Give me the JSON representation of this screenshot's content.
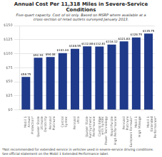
{
  "chart_data": {
    "type": "bar",
    "title": "Annual Cost Per 11,318 Miles in Severe-Service Conditions",
    "subtitle": [
      "Five-quart capacity. Cost of oil only. Based on MSRP where available at a",
      "cross-section of retail outlets surveyed January 2013."
    ],
    "annotations": [
      "*Not recommended for extended service in vehicles used in severe-service driving conditions. See official statement on the Mobil 1 Extended Performance label."
    ],
    "categories": [
      "Mobil 1\nAnnual\nProtection*",
      "Quaker State\nUltimate\nDurability",
      "Pennzoil\nPlatinum",
      "Castrol\nSyntec",
      "Pennzoil\nUltra",
      "Quaker State\nFull Synthetic\nPerformance",
      "Castrol Edge\nwith Syntec\nPower Technology",
      "Royal Purple\nHigh Performance",
      "Pennzoil\nPlatinum\nEuropean Formula*",
      "Mobil 1\nHigh Mileage",
      "Mobil 1\nExtended\nPerformance*"
    ],
    "values": [
      58.75,
      92.93,
      94.08,
      101.04,
      108.55,
      112.88,
      112.81,
      116.12,
      121.83,
      128.75,
      135.75
    ],
    "value_labels": [
      "$58.75",
      "$92.93",
      "$94.08",
      "$101.04",
      "$108.55",
      "$112.88",
      "$112.81",
      "$116.12",
      "$121.83",
      "$128.75",
      "$135.75"
    ],
    "data_labels": true,
    "color": "#1F3A8A",
    "ylim": [
      0,
      150
    ],
    "yticks": [
      {
        "value": 0,
        "label": "$0"
      },
      {
        "value": 25,
        "label": "$25"
      },
      {
        "value": 50,
        "label": "$50"
      },
      {
        "value": 75,
        "label": "$75"
      },
      {
        "value": 100,
        "label": "$100"
      },
      {
        "value": 125,
        "label": "$125"
      },
      {
        "value": 150,
        "label": "$150"
      }
    ],
    "grid": true
  }
}
